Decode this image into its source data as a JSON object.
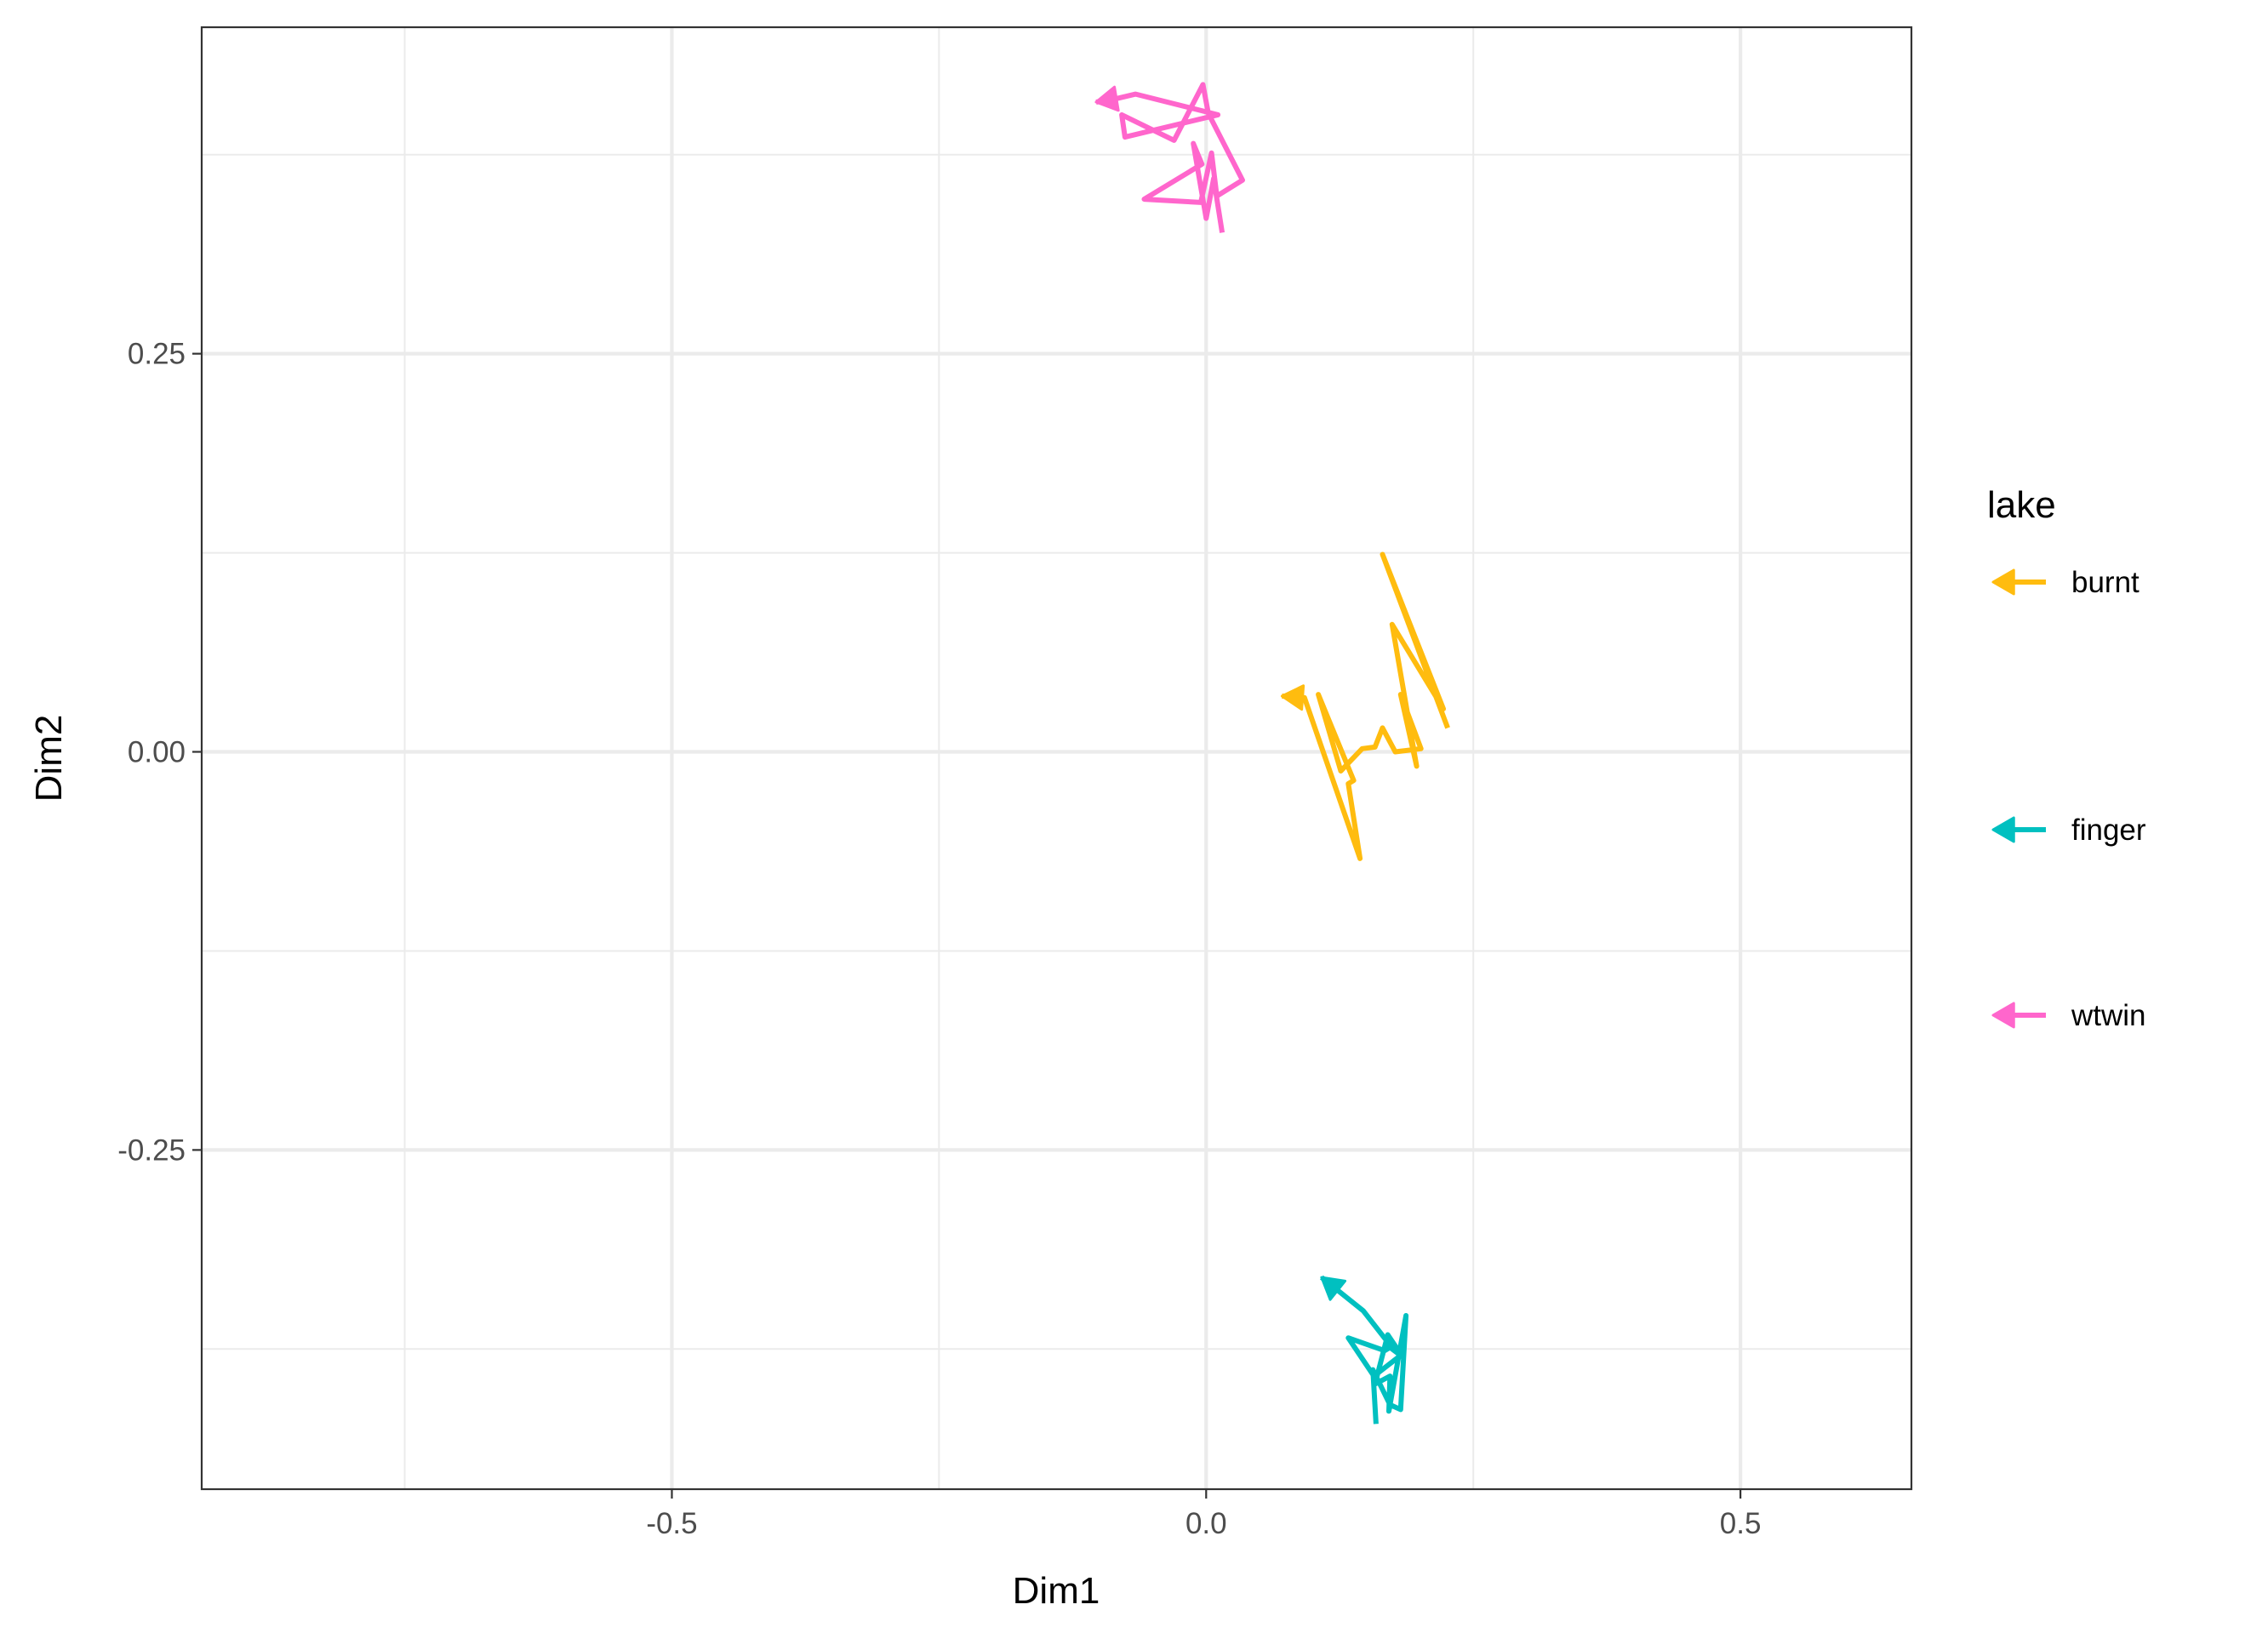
{
  "chart_data": {
    "type": "line",
    "xlabel": "Dim1",
    "ylabel": "Dim2",
    "xlim": [
      -0.94,
      0.66
    ],
    "ylim": [
      -0.463,
      0.455
    ],
    "x_ticks": [
      -0.5,
      0.0,
      0.5
    ],
    "x_tick_labels": [
      "-0.5",
      "0.0",
      "0.5"
    ],
    "y_ticks": [
      -0.25,
      0.0,
      0.25
    ],
    "y_tick_labels": [
      "-0.25",
      "0.00",
      "0.25"
    ],
    "grid": true,
    "legend": {
      "title": "lake",
      "position": "right",
      "entries": [
        "burnt",
        "finger",
        "wtwin"
      ]
    },
    "series": [
      {
        "name": "burnt",
        "color": "#FFBC0F",
        "x": [
          0.226,
          0.165,
          0.222,
          0.174,
          0.197,
          0.182,
          0.201,
          0.177,
          0.165,
          0.158,
          0.146,
          0.126,
          0.105,
          0.138,
          0.133,
          0.144,
          0.092,
          0.071
        ],
        "y": [
          0.015,
          0.124,
          0.027,
          0.08,
          -0.009,
          0.036,
          0.002,
          0.0,
          0.015,
          0.003,
          0.002,
          -0.012,
          0.036,
          -0.018,
          -0.02,
          -0.067,
          0.034,
          0.035
        ]
      },
      {
        "name": "finger",
        "color": "#00C0C0",
        "x": [
          0.159,
          0.156,
          0.172,
          0.182,
          0.187,
          0.171,
          0.172,
          0.158,
          0.17,
          0.184,
          0.172,
          0.167,
          0.133,
          0.157,
          0.184,
          0.175,
          0.147,
          0.108
        ],
        "y": [
          -0.422,
          -0.388,
          -0.41,
          -0.413,
          -0.354,
          -0.414,
          -0.392,
          -0.397,
          -0.366,
          -0.38,
          -0.374,
          -0.376,
          -0.368,
          -0.392,
          -0.378,
          -0.375,
          -0.351,
          -0.33
        ]
      },
      {
        "name": "wtwin",
        "color": "#FF66CC",
        "x": [
          0.015,
          0.007,
          0.0,
          -0.012,
          -0.004,
          -0.058,
          -0.005,
          0.005,
          0.01,
          0.034,
          0.002,
          -0.003,
          -0.03,
          -0.079,
          -0.076,
          0.011,
          -0.066,
          -0.085,
          -0.103
        ],
        "y": [
          0.326,
          0.36,
          0.335,
          0.382,
          0.369,
          0.347,
          0.345,
          0.376,
          0.349,
          0.359,
          0.401,
          0.419,
          0.384,
          0.4,
          0.386,
          0.4,
          0.413,
          0.41,
          0.408
        ]
      }
    ]
  }
}
